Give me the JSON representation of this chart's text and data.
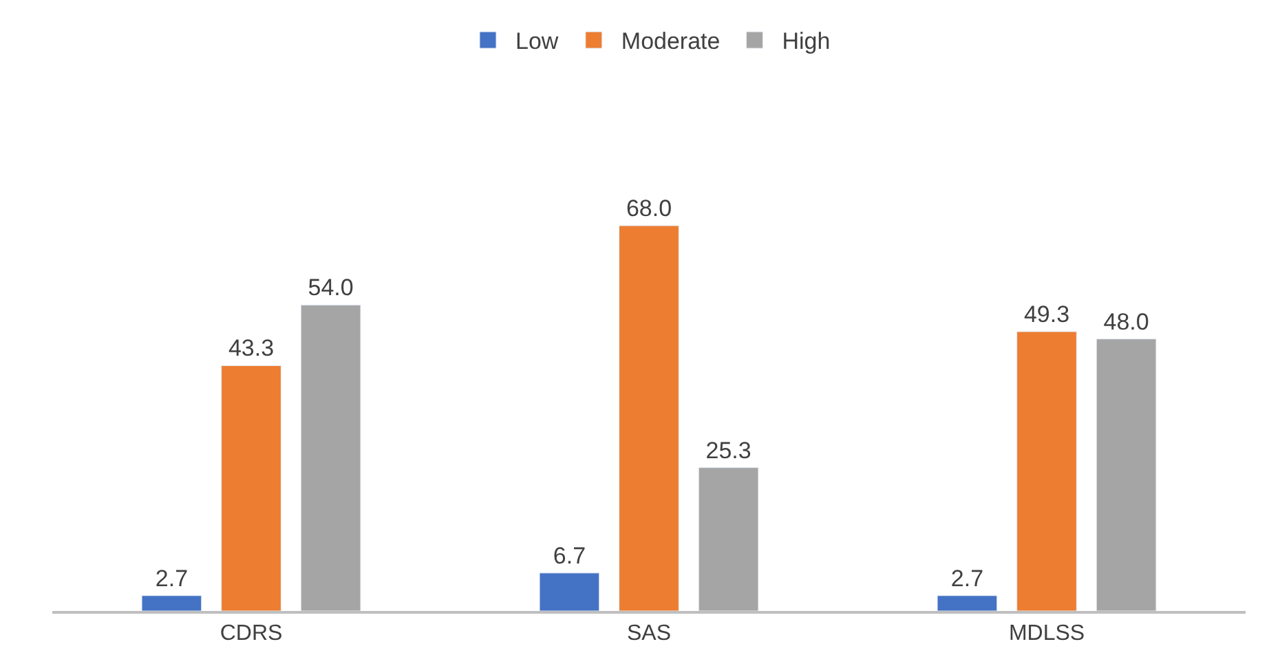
{
  "chart_data": {
    "type": "bar",
    "categories": [
      "CDRS",
      "SAS",
      "MDLSS"
    ],
    "series": [
      {
        "name": "Low",
        "color": "#4472c4",
        "values": [
          2.7,
          6.7,
          2.7
        ],
        "value_labels": [
          "2.7",
          "6.7",
          "2.7"
        ]
      },
      {
        "name": "Moderate",
        "color": "#ed7d31",
        "values": [
          43.3,
          68.0,
          49.3
        ],
        "value_labels": [
          "43.3",
          "68.0",
          "49.3"
        ]
      },
      {
        "name": "High",
        "color": "#a5a5a5",
        "values": [
          54.0,
          25.3,
          48.0
        ],
        "value_labels": [
          "54.0",
          "25.3",
          "48.0"
        ]
      }
    ],
    "legend": "top"
  }
}
